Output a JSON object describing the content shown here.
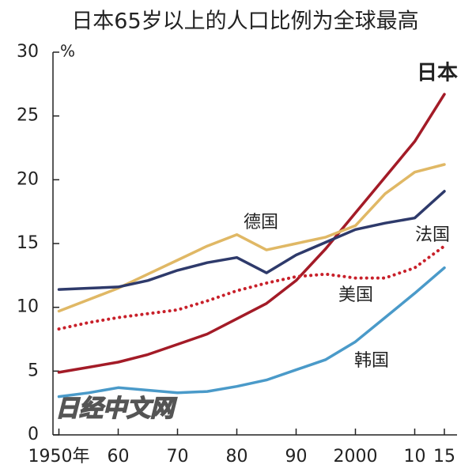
{
  "chart_data": {
    "type": "line",
    "title": "日本65岁以上的人口比例为全球最高",
    "y_unit": "%",
    "watermark": "日经中文网",
    "x": [
      1950,
      1955,
      1960,
      1965,
      1970,
      1975,
      1980,
      1985,
      1990,
      1995,
      2000,
      2005,
      2010,
      2015
    ],
    "xlim": [
      1949,
      2017
    ],
    "xticks": [
      {
        "value": 1950,
        "label": "1950年"
      },
      {
        "value": 1960,
        "label": "60"
      },
      {
        "value": 1970,
        "label": "70"
      },
      {
        "value": 1980,
        "label": "80"
      },
      {
        "value": 1990,
        "label": "90"
      },
      2000,
      {
        "value": 2010,
        "label": "10"
      },
      {
        "value": 2015,
        "label": "15"
      }
    ],
    "ylim": [
      0,
      30
    ],
    "yticks": [
      0,
      5,
      10,
      15,
      20,
      25,
      30
    ],
    "grid": false,
    "series": [
      {
        "name": "日本",
        "color": "#a31b27",
        "style": "solid",
        "values": [
          4.9,
          5.3,
          5.7,
          6.3,
          7.1,
          7.9,
          9.1,
          10.3,
          12.1,
          14.6,
          17.4,
          20.2,
          23.0,
          26.7
        ]
      },
      {
        "name": "德国",
        "color": "#e0b865",
        "style": "solid",
        "values": [
          9.7,
          10.6,
          11.5,
          12.6,
          13.7,
          14.8,
          15.7,
          14.5,
          15.0,
          15.5,
          16.4,
          18.9,
          20.6,
          21.2
        ]
      },
      {
        "name": "法国",
        "color": "#2e3a6b",
        "style": "solid",
        "values": [
          11.4,
          11.5,
          11.6,
          12.1,
          12.9,
          13.5,
          13.9,
          12.7,
          14.1,
          15.1,
          16.1,
          16.6,
          17.0,
          19.1
        ]
      },
      {
        "name": "美国",
        "color": "#c8202a",
        "style": "dotted",
        "values": [
          8.3,
          8.8,
          9.2,
          9.5,
          9.8,
          10.5,
          11.3,
          11.9,
          12.4,
          12.6,
          12.3,
          12.3,
          13.1,
          14.8
        ]
      },
      {
        "name": "韩国",
        "color": "#4a9ac9",
        "style": "solid",
        "values": [
          3.0,
          3.3,
          3.7,
          3.5,
          3.3,
          3.4,
          3.8,
          4.3,
          5.1,
          5.9,
          7.3,
          9.2,
          11.1,
          13.1
        ]
      }
    ]
  }
}
